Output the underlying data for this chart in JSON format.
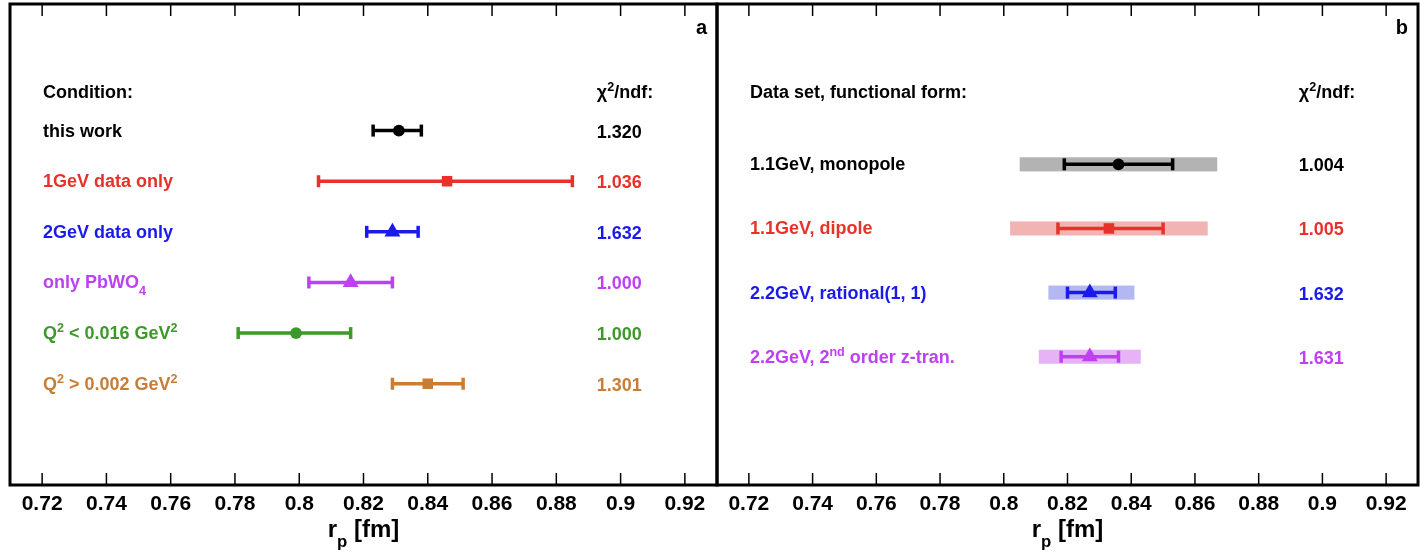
{
  "chart_data": [
    {
      "type": "scatter",
      "title": "a",
      "orientation": "horizontal",
      "xlabel": "r$_{p}$ [fm]",
      "categories": [
        "this work",
        "1GeV data only",
        "2GeV data only",
        "only PbWO$_{4}$",
        "Q$^{2}$ < 0.016 GeV$^{2}$",
        "Q$^{2}$ > 0.002 GeV$^{2}$"
      ],
      "xlim": [
        0.71,
        0.93
      ],
      "xticks": [
        0.72,
        0.74,
        0.76,
        0.78,
        0.8,
        0.82,
        0.84,
        0.86,
        0.88,
        0.9,
        0.92
      ],
      "series": [
        {
          "color": "#000000",
          "marker": "circle",
          "values": [
            0.831,
            null,
            null,
            null,
            null,
            null
          ],
          "errors": [
            [
              0.823,
              0.838
            ],
            null,
            null,
            null,
            null,
            null
          ]
        },
        {
          "color": "#e8312a",
          "marker": "square",
          "values": [
            null,
            0.846,
            null,
            null,
            null,
            null
          ],
          "errors": [
            null,
            [
              0.806,
              0.885
            ],
            null,
            null,
            null,
            null
          ]
        },
        {
          "color": "#1a1aeb",
          "marker": "triangle",
          "values": [
            null,
            null,
            0.829,
            null,
            null,
            null
          ],
          "errors": [
            null,
            null,
            [
              0.821,
              0.837
            ],
            null,
            null,
            null
          ]
        },
        {
          "color": "#bf40f2",
          "marker": "triangle",
          "values": [
            null,
            null,
            null,
            0.816,
            null,
            null
          ],
          "errors": [
            null,
            null,
            null,
            [
              0.803,
              0.829
            ],
            null,
            null
          ]
        },
        {
          "color": "#3d9a2a",
          "marker": "circle",
          "values": [
            null,
            null,
            null,
            null,
            0.799,
            null
          ],
          "errors": [
            null,
            null,
            null,
            null,
            [
              0.781,
              0.816
            ],
            null
          ]
        },
        {
          "color": "#c87d34",
          "marker": "square",
          "values": [
            null,
            null,
            null,
            null,
            null,
            0.84
          ],
          "errors": [
            null,
            null,
            null,
            null,
            null,
            [
              0.829,
              0.851
            ]
          ]
        }
      ],
      "annotations": [
        "Condition:",
        "χ$^{2}$/ndf:",
        "1.320",
        "1.036",
        "1.632",
        "1.000",
        "1.000",
        "1.301"
      ]
    },
    {
      "type": "scatter",
      "title": "b",
      "orientation": "horizontal",
      "xlabel": "r$_{p}$ [fm]",
      "categories": [
        "1.1GeV, monopole",
        "1.1GeV, dipole",
        "2.2GeV, rational(1, 1)",
        "2.2GeV, 2$^{nd}$ order z-tran."
      ],
      "xlim": [
        0.71,
        0.93
      ],
      "xticks": [
        0.72,
        0.74,
        0.76,
        0.78,
        0.8,
        0.82,
        0.84,
        0.86,
        0.88,
        0.9,
        0.92
      ],
      "series": [
        {
          "type": "bar",
          "base": [
            0.805,
            0.802,
            0.814,
            0.811
          ],
          "values": [
            0.062,
            0.062,
            0.027,
            0.032
          ],
          "colors": [
            "#b3b3b3",
            "#f2b3b3",
            "#b3b8f2",
            "#e6b3f7"
          ]
        },
        {
          "color": "#000000",
          "marker": "circle",
          "values": [
            0.836,
            null,
            null,
            null
          ],
          "errors": [
            [
              0.819,
              0.853
            ],
            null,
            null,
            null
          ]
        },
        {
          "color": "#e8312a",
          "marker": "square",
          "values": [
            null,
            0.833,
            null,
            null
          ],
          "errors": [
            null,
            [
              0.817,
              0.85
            ],
            null,
            null
          ]
        },
        {
          "color": "#1a1aeb",
          "marker": "triangle",
          "values": [
            null,
            null,
            0.827,
            null
          ],
          "errors": [
            null,
            null,
            [
              0.82,
              0.835
            ],
            null
          ]
        },
        {
          "color": "#bf40f2",
          "marker": "triangle",
          "values": [
            null,
            null,
            null,
            0.827
          ],
          "errors": [
            null,
            null,
            null,
            [
              0.818,
              0.836
            ]
          ]
        }
      ],
      "annotations": [
        "Data set, functional form:",
        "χ$^{2}$/ndf:",
        "1.004",
        "1.005",
        "1.632",
        "1.631"
      ]
    }
  ]
}
